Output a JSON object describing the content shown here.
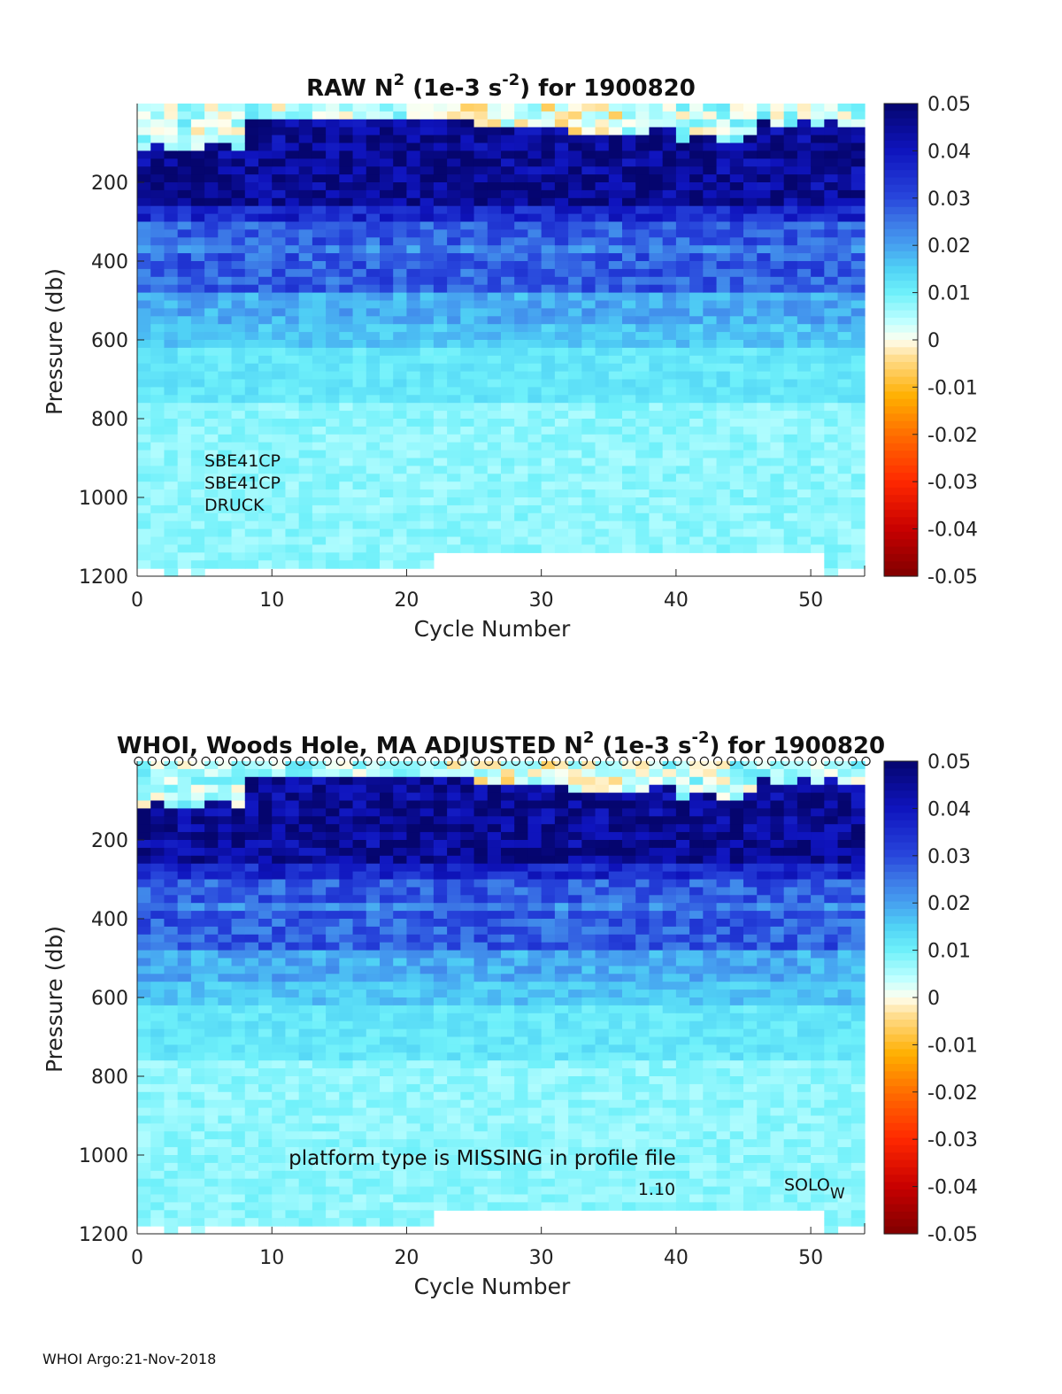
{
  "footer": "WHOI Argo:21-Nov-2018",
  "chart_data": [
    {
      "type": "heatmap",
      "title_parts": {
        "prefix": "RAW N",
        "sup1": "2",
        "mid": " (1e-3 s",
        "sup2": "-2",
        "suffix": ") for 1900820"
      },
      "xlabel": "Cycle Number",
      "ylabel": "Pressure (db)",
      "xlim": [
        0,
        54
      ],
      "ylim": [
        1200,
        0
      ],
      "xticks": [
        0,
        10,
        20,
        30,
        40,
        50
      ],
      "yticks": [
        200,
        400,
        600,
        800,
        1000,
        1200
      ],
      "colorbar": {
        "clim": [
          -0.05,
          0.05
        ],
        "ticks": [
          "0.05",
          "0.04",
          "0.03",
          "0.02",
          "0.01",
          "0",
          "-0.01",
          "-0.02",
          "-0.03",
          "-0.04",
          "-0.05"
        ],
        "colormap": "blue-cyan-white-yellow-red"
      },
      "annotations": [
        "SBE41CP",
        "SBE41CP",
        "DRUCK"
      ],
      "cycles": 54,
      "max_pressure_by_cycle": {
        "0-21": 1165,
        "22-50": 1125,
        "51": 1200,
        "52-53": 1165,
        "2": 1200,
        "4": 1200
      },
      "profile_markers": false,
      "grid": false
    },
    {
      "type": "heatmap",
      "title_parts": {
        "prefix": "WHOI, Woods Hole, MA  ADJUSTED N",
        "sup1": "2",
        "mid": " (1e-3 s",
        "sup2": "-2",
        "suffix": ") for 1900820"
      },
      "xlabel": "Cycle Number",
      "ylabel": "Pressure (db)",
      "xlim": [
        0,
        54
      ],
      "ylim": [
        1200,
        0
      ],
      "xticks": [
        0,
        10,
        20,
        30,
        40,
        50
      ],
      "yticks": [
        200,
        400,
        600,
        800,
        1000,
        1200
      ],
      "colorbar": {
        "clim": [
          -0.05,
          0.05
        ],
        "ticks": [
          "0.05",
          "0.04",
          "0.03",
          "0.02",
          "0.01",
          "0",
          "-0.01",
          "-0.02",
          "-0.03",
          "-0.04",
          "-0.05"
        ],
        "colormap": "blue-cyan-white-yellow-red"
      },
      "annotations": [
        "platform type is MISSING in profile file",
        "1.10",
        "SOLO",
        "W"
      ],
      "cycles": 54,
      "max_pressure_by_cycle": {
        "0-21": 1165,
        "22-50": 1125,
        "51": 1200,
        "52-53": 1165,
        "2": 1200,
        "4": 1200
      },
      "profile_markers": true,
      "grid": false
    }
  ]
}
